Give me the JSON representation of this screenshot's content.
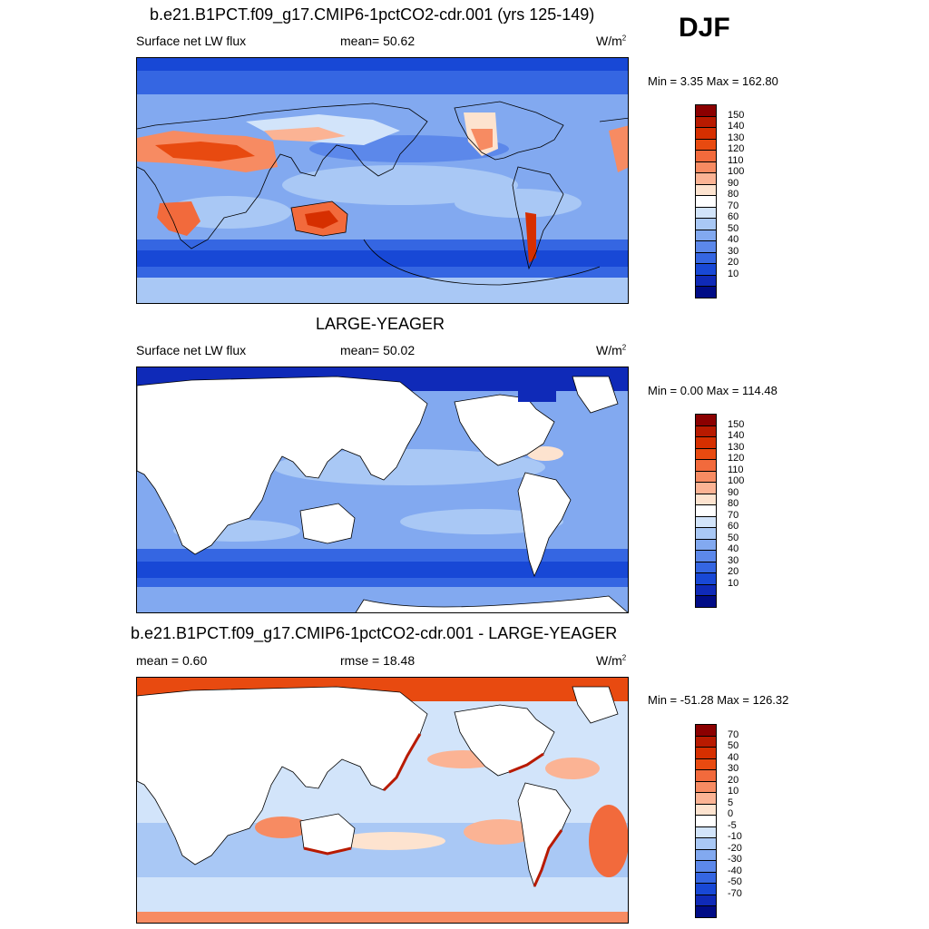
{
  "header": {
    "title": "b.e21.B1PCT.f09_g17.CMIP6-1pctCO2-cdr.001 (yrs 125-149)",
    "season": "DJF"
  },
  "panels": [
    {
      "title": "b.e21.B1PCT.f09_g17.CMIP6-1pctCO2-cdr.001 (yrs 125-149)",
      "left_label": "Surface net LW flux",
      "center_label": "mean=  50.62",
      "right_label": "W/m",
      "right_sup": "2",
      "minmax": "Min =   3.35 Max = 162.80"
    },
    {
      "title": "LARGE-YEAGER",
      "left_label": "Surface net LW flux",
      "center_label": "mean=  50.02",
      "right_label": "W/m",
      "right_sup": "2",
      "minmax": "Min =   0.00 Max = 114.48"
    },
    {
      "title": "b.e21.B1PCT.f09_g17.CMIP6-1pctCO2-cdr.001 - LARGE-YEAGER",
      "left_label": "mean =   0.60",
      "center_label": "rmse =  18.48",
      "right_label": "W/m",
      "right_sup": "2",
      "minmax": "Min = -51.28 Max = 126.32"
    }
  ],
  "colorbars": {
    "absolute": {
      "labels": [
        "150",
        "140",
        "130",
        "120",
        "110",
        "100",
        "90",
        "80",
        "70",
        "60",
        "50",
        "40",
        "30",
        "20",
        "10"
      ],
      "colors": [
        "#8b0000",
        "#b81a00",
        "#d62f00",
        "#e84a10",
        "#f26a3c",
        "#f78b62",
        "#fbb394",
        "#fde3cf",
        "#ffffff",
        "#d2e4fa",
        "#a9c8f5",
        "#82a9f0",
        "#5c88ea",
        "#3566e2",
        "#1848d6",
        "#0f2ab8",
        "#000c86"
      ]
    },
    "difference": {
      "labels": [
        "70",
        "50",
        "40",
        "30",
        "20",
        "10",
        "5",
        "0",
        "-5",
        "-10",
        "-20",
        "-30",
        "-40",
        "-50",
        "-70"
      ],
      "colors": [
        "#8b0000",
        "#b81a00",
        "#d62f00",
        "#e84a10",
        "#f26a3c",
        "#f78b62",
        "#fbb394",
        "#fde3cf",
        "#ffffff",
        "#d2e4fa",
        "#a9c8f5",
        "#82a9f0",
        "#5c88ea",
        "#3566e2",
        "#1848d6",
        "#0f2ab8",
        "#000c86"
      ]
    }
  }
}
